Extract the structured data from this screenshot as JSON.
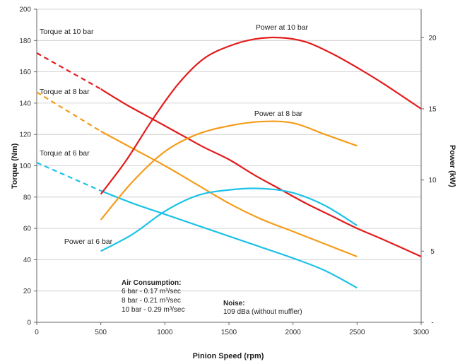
{
  "chart_data": {
    "type": "line",
    "xlabel": "Pinion Speed (rpm)",
    "ylabel_left": "Torque (Nm)",
    "ylabel_right": "Power (kW)",
    "xlim": [
      0,
      3000
    ],
    "ylim_left": [
      0,
      200
    ],
    "ylim_right": [
      0,
      22
    ],
    "x_ticks": [
      0,
      500,
      1000,
      1500,
      2000,
      2500,
      3000
    ],
    "y_ticks_left": [
      0,
      20,
      40,
      60,
      80,
      100,
      120,
      140,
      160,
      180,
      200
    ],
    "y_ticks_right": [
      {
        "value": 0,
        "label": "-"
      },
      {
        "value": 5,
        "label": "5"
      },
      {
        "value": 10,
        "label": "10"
      },
      {
        "value": 15,
        "label": "15"
      },
      {
        "value": 20,
        "label": "20"
      }
    ],
    "grid": "horizontal",
    "colors": {
      "10bar": "#e31b1b",
      "8bar": "#f59c1a",
      "6bar": "#1ec2e8"
    },
    "series": [
      {
        "name": "Torque at 10 bar",
        "axis": "left",
        "color": "#e31b1b",
        "dashed": {
          "x": [
            0,
            500
          ],
          "y": [
            172,
            149
          ]
        },
        "x": [
          500,
          700,
          900,
          1100,
          1300,
          1500,
          1700,
          1900,
          2100,
          2300,
          2500,
          2700,
          3000
        ],
        "y": [
          149,
          139,
          130,
          121,
          112,
          104,
          94,
          85,
          76,
          68,
          60,
          53,
          42
        ]
      },
      {
        "name": "Torque at 8 bar",
        "axis": "left",
        "color": "#f59c1a",
        "dashed": {
          "x": [
            0,
            500
          ],
          "y": [
            147,
            122
          ]
        },
        "x": [
          500,
          750,
          1000,
          1250,
          1500,
          1750,
          2000,
          2250,
          2500
        ],
        "y": [
          122,
          111,
          100,
          88,
          76,
          66,
          58,
          50,
          42
        ]
      },
      {
        "name": "Torque at 6 bar",
        "axis": "left",
        "color": "#1ec2e8",
        "dashed": {
          "x": [
            0,
            500
          ],
          "y": [
            102,
            84
          ]
        },
        "x": [
          500,
          750,
          1000,
          1250,
          1500,
          1750,
          2000,
          2250,
          2500
        ],
        "y": [
          84,
          76,
          69,
          62,
          55,
          48,
          41,
          33,
          22
        ]
      },
      {
        "name": "Power at 10 bar",
        "axis": "right",
        "color": "#e31b1b",
        "x": [
          500,
          700,
          900,
          1100,
          1300,
          1500,
          1700,
          1900,
          2100,
          2300,
          2500,
          2700,
          3000
        ],
        "y": [
          9.0,
          11.4,
          14.2,
          16.7,
          18.5,
          19.4,
          19.9,
          20.0,
          19.7,
          18.9,
          17.9,
          16.8,
          15.0
        ]
      },
      {
        "name": "Power at 8 bar",
        "axis": "right",
        "color": "#f59c1a",
        "x": [
          500,
          750,
          1000,
          1250,
          1500,
          1750,
          2000,
          2250,
          2500
        ],
        "y": [
          7.2,
          9.9,
          12.0,
          13.2,
          13.8,
          14.1,
          14.0,
          13.2,
          12.4
        ]
      },
      {
        "name": "Power at 6 bar",
        "axis": "right",
        "color": "#1ec2e8",
        "x": [
          500,
          750,
          1000,
          1250,
          1500,
          1750,
          2000,
          2250,
          2500
        ],
        "y": [
          5.0,
          6.2,
          7.8,
          8.9,
          9.3,
          9.4,
          9.1,
          8.2,
          6.8
        ]
      }
    ],
    "annotations": {
      "air_title": "Air Consumption:",
      "air_lines": [
        "6   bar - 0.17 m³/sec",
        "8   bar - 0.21 m³/sec",
        "10 bar - 0.29 m³/sec"
      ],
      "noise_title": "Noise:",
      "noise_text": "109 dBa (without muffler)"
    }
  }
}
